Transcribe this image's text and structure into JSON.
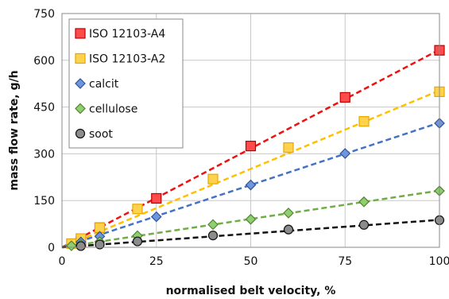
{
  "chart_data": {
    "type": "scatter",
    "xlabel": "normalised belt velocity, %",
    "ylabel": "mass flow rate, g/h",
    "xlim": [
      0,
      100
    ],
    "ylim": [
      0,
      750
    ],
    "xticks": [
      0,
      25,
      50,
      75,
      100
    ],
    "yticks": [
      0,
      150,
      300,
      450,
      600,
      750
    ],
    "grid": true,
    "legend_position": "top-left",
    "series": [
      {
        "name": "ISO 12103-A4",
        "marker": "square",
        "fill": "#ff4b4b",
        "stroke": "#c00000",
        "line_color": "#ee1111",
        "points": [
          [
            5,
            17
          ],
          [
            10,
            63
          ],
          [
            25,
            157
          ],
          [
            50,
            325
          ],
          [
            75,
            481
          ],
          [
            100,
            632
          ]
        ],
        "fit": [
          [
            0,
            0
          ],
          [
            100,
            634
          ]
        ]
      },
      {
        "name": "ISO 12103-A2",
        "marker": "square",
        "fill": "#ffd24d",
        "stroke": "#e6a800",
        "line_color": "#ffc000",
        "points": [
          [
            2.5,
            12
          ],
          [
            5,
            28
          ],
          [
            10,
            63
          ],
          [
            20,
            123
          ],
          [
            40,
            219
          ],
          [
            60,
            320
          ],
          [
            80,
            404
          ],
          [
            100,
            499
          ]
        ],
        "fit": [
          [
            0,
            0
          ],
          [
            100,
            503
          ]
        ]
      },
      {
        "name": "calcit",
        "marker": "diamond",
        "fill": "#6f95e0",
        "stroke": "#2f5597",
        "line_color": "#4472c4",
        "points": [
          [
            5,
            17
          ],
          [
            10,
            35
          ],
          [
            25,
            98
          ],
          [
            50,
            200
          ],
          [
            75,
            301
          ],
          [
            100,
            398
          ]
        ],
        "fit": [
          [
            0,
            0
          ],
          [
            100,
            400
          ]
        ]
      },
      {
        "name": "cellulose",
        "marker": "diamond",
        "fill": "#8fcf6f",
        "stroke": "#548235",
        "line_color": "#70ad47",
        "points": [
          [
            2.5,
            5
          ],
          [
            5,
            9
          ],
          [
            10,
            18
          ],
          [
            20,
            37
          ],
          [
            40,
            73
          ],
          [
            50,
            90
          ],
          [
            60,
            110
          ],
          [
            80,
            146
          ],
          [
            100,
            181
          ]
        ],
        "fit": [
          [
            0,
            0
          ],
          [
            100,
            182
          ]
        ]
      },
      {
        "name": "soot",
        "marker": "circle",
        "fill": "#8c8c8c",
        "stroke": "#111111",
        "line_color": "#111111",
        "points": [
          [
            5,
            4
          ],
          [
            10,
            9
          ],
          [
            20,
            19
          ],
          [
            40,
            38
          ],
          [
            60,
            57
          ],
          [
            80,
            72
          ],
          [
            100,
            87
          ]
        ],
        "fit": [
          [
            0,
            0
          ],
          [
            100,
            88
          ]
        ]
      }
    ]
  }
}
